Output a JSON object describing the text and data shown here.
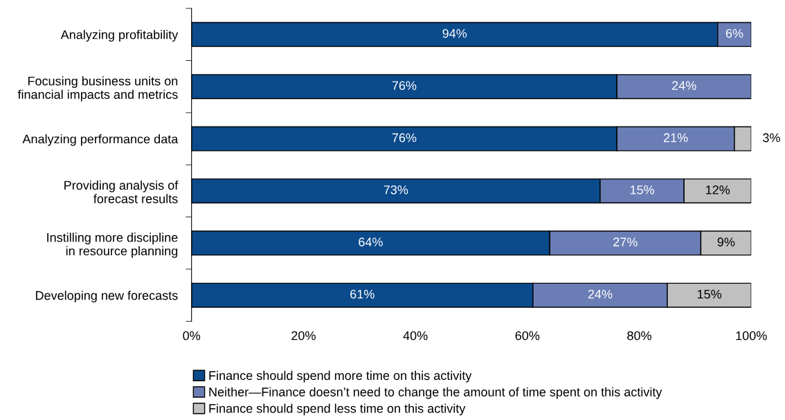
{
  "chart_data": {
    "type": "bar",
    "orientation": "horizontal",
    "stacked": true,
    "categories": [
      "Analyzing profitability",
      "Focusing business units on\nfinancial impacts and metrics",
      "Analyzing performance data",
      "Providing analysis of\nforecast results",
      "Instilling more discipline\nin resource planning",
      "Developing new forecasts"
    ],
    "series": [
      {
        "name": "Finance should spend more time on this activity",
        "color": "#0b4a8b",
        "values": [
          94,
          76,
          76,
          73,
          64,
          61
        ],
        "value_labels": [
          "94%",
          "76%",
          "76%",
          "73%",
          "64%",
          "61%"
        ]
      },
      {
        "name": "Neither—Finance doesn’t need to change the amount of time spent on this activity",
        "color": "#6a7db5",
        "values": [
          6,
          24,
          21,
          15,
          27,
          24
        ],
        "value_labels": [
          "6%",
          "24%",
          "21%",
          "15%",
          "27%",
          "24%"
        ]
      },
      {
        "name": "Finance should spend less time on this activity",
        "color": "#c0c0c0",
        "values": [
          null,
          null,
          3,
          12,
          9,
          15
        ],
        "value_labels": [
          null,
          null,
          "3%",
          "12%",
          "9%",
          "15%"
        ]
      }
    ],
    "xlim": [
      0,
      100
    ],
    "xticks": [
      {
        "value": 0,
        "label": "0%"
      },
      {
        "value": 20,
        "label": "20%"
      },
      {
        "value": 40,
        "label": "40%"
      },
      {
        "value": 60,
        "label": "60%"
      },
      {
        "value": 80,
        "label": "80%"
      },
      {
        "value": 100,
        "label": "100%"
      }
    ],
    "grid": false,
    "legend": "bottom"
  }
}
